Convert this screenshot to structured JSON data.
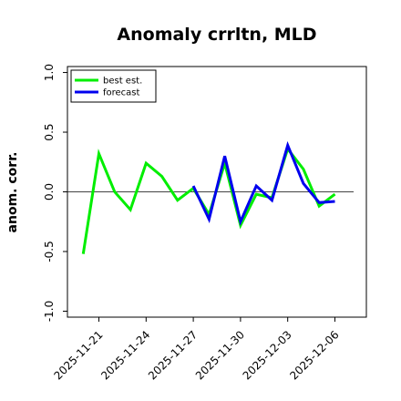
{
  "chart_data": {
    "type": "line",
    "title": "Anomaly crrltn, MLD",
    "xlabel": "",
    "ylabel": "anom. corr.",
    "ylim": [
      -1.05,
      1.05
    ],
    "yticks": [
      -1.0,
      -0.5,
      0.0,
      0.5,
      1.0
    ],
    "ytick_labels": [
      "-1.0",
      "-0.5",
      "0.0",
      "0.5",
      "1.0"
    ],
    "x_range": [
      "2025-11-19",
      "2025-12-08"
    ],
    "xtick_labels": [
      "2025-11-21",
      "2025-11-24",
      "2025-11-27",
      "2025-11-30",
      "2025-12-03",
      "2025-12-06"
    ],
    "xtick_highlight": "2025-11-27",
    "xtick_highlight_color": "#008000",
    "reference_line": 0.0,
    "grid": false,
    "legend_position": "top-left",
    "series": [
      {
        "name": "best est.",
        "color": "#00ee00",
        "x": [
          "2025-11-20",
          "2025-11-21",
          "2025-11-22",
          "2025-11-23",
          "2025-11-24",
          "2025-11-25",
          "2025-11-26",
          "2025-11-27",
          "2025-11-28",
          "2025-11-29",
          "2025-11-30",
          "2025-12-01",
          "2025-12-02",
          "2025-12-03",
          "2025-12-04",
          "2025-12-05",
          "2025-12-06"
        ],
        "values": [
          -0.52,
          0.32,
          0.0,
          -0.15,
          0.24,
          0.13,
          -0.07,
          0.03,
          -0.19,
          0.24,
          -0.28,
          -0.02,
          -0.05,
          0.36,
          0.19,
          -0.12,
          -0.02
        ]
      },
      {
        "name": "forecast",
        "color": "#0000ee",
        "x": [
          "2025-11-27",
          "2025-11-28",
          "2025-11-29",
          "2025-11-30",
          "2025-12-01",
          "2025-12-02",
          "2025-12-03",
          "2025-12-04",
          "2025-12-05",
          "2025-12-06"
        ],
        "values": [
          0.05,
          -0.23,
          0.3,
          -0.25,
          0.05,
          -0.07,
          0.39,
          0.07,
          -0.09,
          -0.08
        ]
      }
    ]
  }
}
